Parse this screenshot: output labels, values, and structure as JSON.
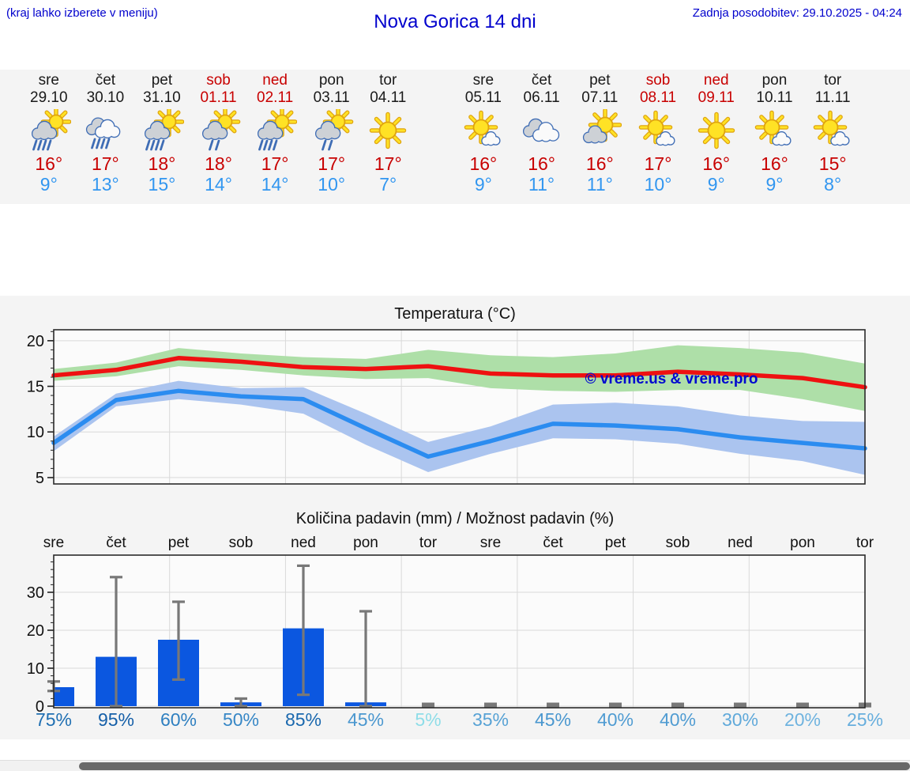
{
  "header": {
    "menu_hint": "(kraj lahko izberete v meniju)",
    "title": "Nova Gorica 14 dni",
    "last_update": "Zadnja posodobitev: 29.10.2025 - 04:24"
  },
  "colors": {
    "header_text": "#0000cd",
    "high_temp_text": "#c80000",
    "low_temp_text": "#3196f0",
    "weekend_text": "#c80000"
  },
  "days": [
    {
      "name": "sre",
      "date": "29.10",
      "weekend": false,
      "icon": "sun-cloud-rain-icon",
      "high": "16°",
      "low": "9°"
    },
    {
      "name": "čet",
      "date": "30.10",
      "weekend": false,
      "icon": "clouds-rain-icon",
      "high": "17°",
      "low": "13°"
    },
    {
      "name": "pet",
      "date": "31.10",
      "weekend": false,
      "icon": "sun-cloud-rain-icon",
      "high": "18°",
      "low": "15°"
    },
    {
      "name": "sob",
      "date": "01.11",
      "weekend": true,
      "icon": "sun-cloud-light-rain-icon",
      "high": "18°",
      "low": "14°"
    },
    {
      "name": "ned",
      "date": "02.11",
      "weekend": true,
      "icon": "sun-cloud-rain-icon",
      "high": "17°",
      "low": "14°"
    },
    {
      "name": "pon",
      "date": "03.11",
      "weekend": false,
      "icon": "sun-cloud-light-rain-icon",
      "high": "17°",
      "low": "10°"
    },
    {
      "name": "tor",
      "date": "04.11",
      "weekend": false,
      "icon": "sun-icon",
      "high": "17°",
      "low": "7°"
    },
    {
      "name": "sre",
      "date": "05.11",
      "weekend": false,
      "icon": "sun-small-cloud-icon",
      "high": "16°",
      "low": "9°"
    },
    {
      "name": "čet",
      "date": "06.11",
      "weekend": false,
      "icon": "clouds-icon",
      "high": "16°",
      "low": "11°"
    },
    {
      "name": "pet",
      "date": "07.11",
      "weekend": false,
      "icon": "sun-cloud-icon",
      "high": "16°",
      "low": "11°"
    },
    {
      "name": "sob",
      "date": "08.11",
      "weekend": true,
      "icon": "sun-small-cloud-icon",
      "high": "17°",
      "low": "10°"
    },
    {
      "name": "ned",
      "date": "09.11",
      "weekend": true,
      "icon": "sun-icon",
      "high": "16°",
      "low": "9°"
    },
    {
      "name": "pon",
      "date": "10.11",
      "weekend": false,
      "icon": "sun-small-cloud-icon",
      "high": "16°",
      "low": "9°"
    },
    {
      "name": "tor",
      "date": "11.11",
      "weekend": false,
      "icon": "sun-small-cloud-icon",
      "high": "15°",
      "low": "8°"
    }
  ],
  "chart_data": [
    {
      "type": "line",
      "title": "Temperatura (°C)",
      "x_labels": [
        "sre 29.10",
        "čet 30.10",
        "pet 31.10",
        "sob 01.11",
        "ned 02.11",
        "pon 03.11",
        "tor 04.11",
        "sre 05.11",
        "čet 06.11",
        "pet 07.11",
        "sob 08.11",
        "ned 09.11",
        "pon 10.11",
        "tor 11.11"
      ],
      "series": [
        {
          "name": "max-temp",
          "color": "#ee1111",
          "values": [
            16.2,
            16.8,
            18.1,
            17.7,
            17.1,
            16.9,
            17.2,
            16.4,
            16.2,
            16.2,
            16.6,
            16.3,
            15.9,
            14.9
          ]
        },
        {
          "name": "min-temp",
          "color": "#2b8cf0",
          "values": [
            8.8,
            13.5,
            14.5,
            13.9,
            13.6,
            10.4,
            7.3,
            9.0,
            10.9,
            10.7,
            10.3,
            9.4,
            8.8,
            8.2
          ]
        }
      ],
      "bands": [
        {
          "name": "max-temp-range",
          "color": "#aedfa8",
          "upper": [
            16.9,
            17.6,
            19.2,
            18.6,
            18.2,
            18.0,
            19.0,
            18.4,
            18.2,
            18.6,
            19.5,
            19.2,
            18.7,
            17.5
          ],
          "lower": [
            15.6,
            16.1,
            17.2,
            16.8,
            16.2,
            15.8,
            15.9,
            14.8,
            14.5,
            14.4,
            14.6,
            14.6,
            13.6,
            12.3
          ]
        },
        {
          "name": "min-temp-range",
          "color": "#abc4ef",
          "upper": [
            9.5,
            14.2,
            15.6,
            14.8,
            14.9,
            12.0,
            8.9,
            10.6,
            13.0,
            13.2,
            12.8,
            11.8,
            11.2,
            11.1
          ],
          "lower": [
            7.9,
            12.8,
            13.6,
            13.0,
            12.0,
            8.6,
            5.6,
            7.6,
            9.3,
            9.2,
            8.7,
            7.6,
            6.8,
            5.3
          ]
        }
      ],
      "ylim": [
        4.3,
        21.2
      ],
      "yticks": [
        5,
        10,
        15,
        20
      ],
      "grid": true,
      "watermark": "© vreme.us & vreme.pro"
    },
    {
      "type": "bar",
      "title": "Količina padavin (mm) / Možnost padavin (%)",
      "categories": [
        "sre",
        "čet",
        "pet",
        "sob",
        "ned",
        "pon",
        "tor",
        "sre",
        "čet",
        "pet",
        "sob",
        "ned",
        "pon",
        "tor"
      ],
      "values": [
        5,
        13,
        17.5,
        1,
        20.5,
        1,
        0,
        0,
        0,
        0,
        0,
        0,
        0,
        0
      ],
      "whisker_low": [
        4,
        0,
        7,
        0,
        3,
        0,
        0,
        0,
        0,
        0,
        0,
        0,
        0,
        0
      ],
      "whisker_high": [
        6.5,
        34,
        27.5,
        2,
        37,
        25,
        0.6,
        0.6,
        0.6,
        0.6,
        0.6,
        0.6,
        0.6,
        0.6
      ],
      "probabilities": [
        "75%",
        "95%",
        "60%",
        "50%",
        "85%",
        "45%",
        "5%",
        "35%",
        "45%",
        "40%",
        "40%",
        "30%",
        "20%",
        "25%"
      ],
      "prob_colors": [
        "#1f6fb2",
        "#155fa8",
        "#2e7fc0",
        "#3787c6",
        "#1a68ae",
        "#4a97cf",
        "#8edde8",
        "#57a2d5",
        "#4a97cf",
        "#509cd2",
        "#509cd2",
        "#60a9da",
        "#6fb3df",
        "#67aedd"
      ],
      "ylim": [
        -0.4,
        39.8
      ],
      "yticks": [
        0,
        10,
        20,
        30
      ],
      "grid": true,
      "bar_color": "#0b57e0",
      "whisker_color": "#787878"
    }
  ]
}
